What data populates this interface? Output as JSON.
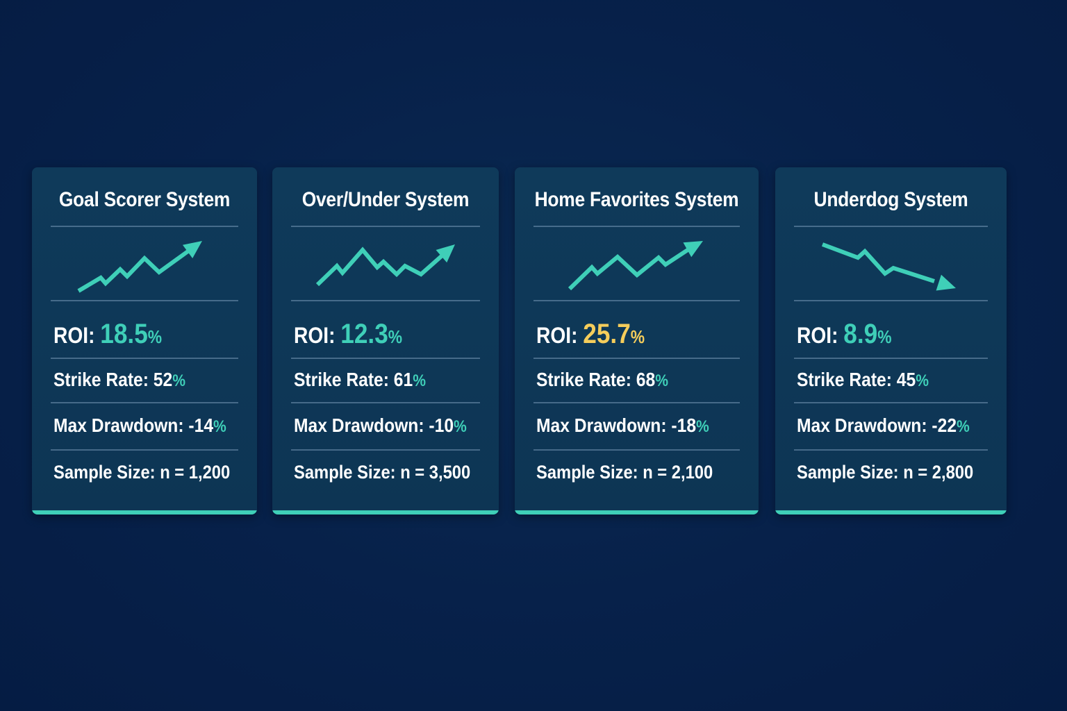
{
  "colors": {
    "background": "#07214a",
    "card": "#0e3756",
    "accent": "#3fcfb8",
    "highlight": "#f5cd5b",
    "text": "#ffffff"
  },
  "cards": [
    {
      "title": "Goal Scorer System",
      "trend_icon": "trend-up-arrow-icon",
      "roi_label": "ROI:",
      "roi_value": "18.5",
      "roi_unit": "%",
      "roi_color": "#3fcfb8",
      "strike_label": "Strike Rate:",
      "strike_value": "52",
      "strike_unit": "%",
      "drawdown_label": "Max Drawdown:",
      "drawdown_value": "-14",
      "drawdown_unit": "%",
      "sample_label": "Sample Size:",
      "sample_value": "n = 1,200"
    },
    {
      "title": "Over/Under System",
      "trend_icon": "trend-up-arrow-icon",
      "roi_label": "ROI:",
      "roi_value": "12.3",
      "roi_unit": "%",
      "roi_color": "#3fcfb8",
      "strike_label": "Strike Rate:",
      "strike_value": "61",
      "strike_unit": "%",
      "drawdown_label": "Max Drawdown:",
      "drawdown_value": "-10",
      "drawdown_unit": "%",
      "sample_label": "Sample Size:",
      "sample_value": "n = 3,500"
    },
    {
      "title": "Home Favorites System",
      "trend_icon": "trend-up-arrow-icon",
      "roi_label": "ROI:",
      "roi_value": "25.7",
      "roi_unit": "%",
      "roi_color": "#f5cd5b",
      "strike_label": "Strike Rate:",
      "strike_value": "68",
      "strike_unit": "%",
      "drawdown_label": "Max Drawdown:",
      "drawdown_value": "-18",
      "drawdown_unit": "%",
      "sample_label": "Sample Size:",
      "sample_value": "n = 2,100"
    },
    {
      "title": "Underdog System",
      "trend_icon": "trend-down-arrow-icon",
      "roi_label": "ROI:",
      "roi_value": "8.9",
      "roi_unit": "%",
      "roi_color": "#3fcfb8",
      "strike_label": "Strike Rate:",
      "strike_value": "45",
      "strike_unit": "%",
      "drawdown_label": "Max Drawdown:",
      "drawdown_value": "-22",
      "drawdown_unit": "%",
      "sample_label": "Sample Size:",
      "sample_value": "n = 2,800"
    }
  ]
}
